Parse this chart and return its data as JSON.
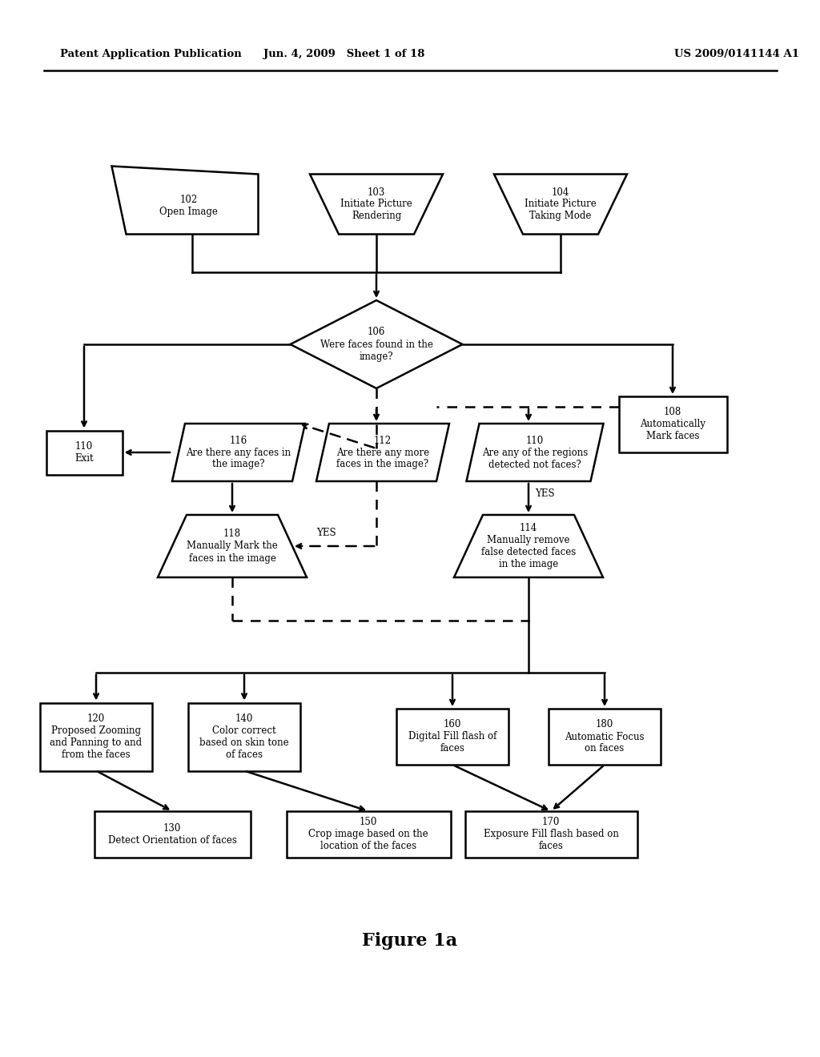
{
  "header_left": "Patent Application Publication",
  "header_mid": "Jun. 4, 2009   Sheet 1 of 18",
  "header_right": "US 2009/0141144 A1",
  "figure_label": "Figure 1a",
  "bg_color": "#ffffff",
  "line_color": "#000000"
}
